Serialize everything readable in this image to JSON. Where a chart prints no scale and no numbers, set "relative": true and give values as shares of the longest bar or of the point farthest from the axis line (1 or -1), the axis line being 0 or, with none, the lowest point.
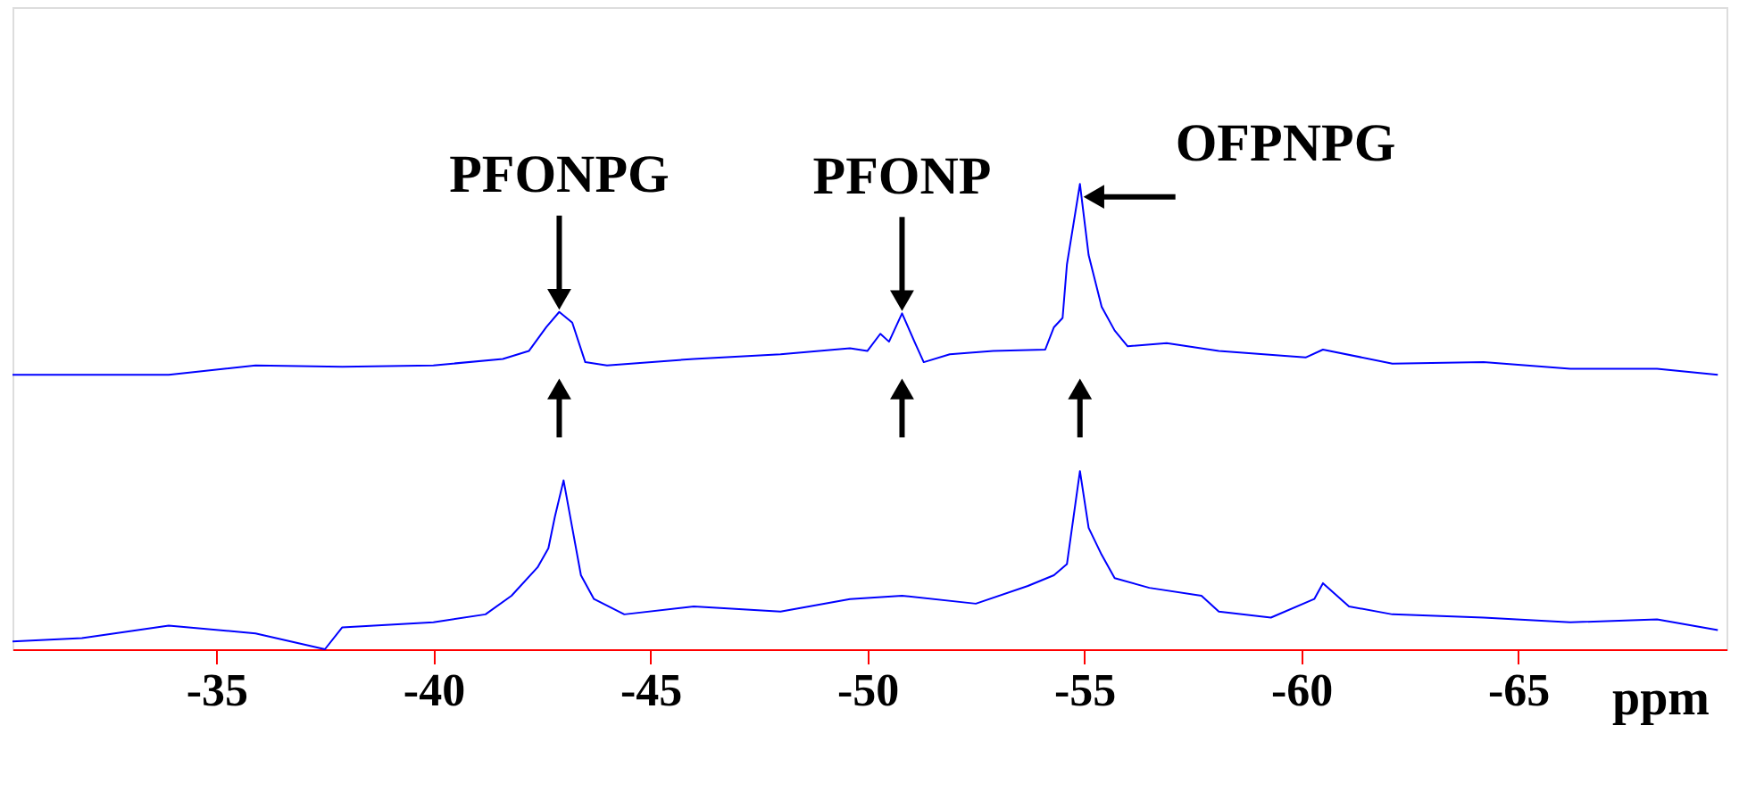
{
  "chart_data": {
    "type": "line",
    "relative": true,
    "xlabel": "ppm",
    "xlim": [
      -30.3,
      -69.8
    ],
    "xticks": [
      -35,
      -40,
      -45,
      -50,
      -55,
      -60,
      -65
    ],
    "grid": false,
    "legend": false,
    "marker": "none",
    "line_style": "solid",
    "annotations": [
      {
        "text": "PFONPG",
        "x": -42.9,
        "y": 0.725
      },
      {
        "text": "PFONP",
        "x": -50.8,
        "y": 0.722
      },
      {
        "text": "OFPNPG",
        "x": -54.9,
        "y": 1.0
      }
    ],
    "series": [
      {
        "color": "#0000ff",
        "x": [
          -30.3,
          -33.9,
          -35.9,
          -37.9,
          -40.0,
          -41.6,
          -42.2,
          -42.6,
          -42.9,
          -43.2,
          -43.5,
          -44.0,
          -46.0,
          -48.0,
          -49.6,
          -50.0,
          -50.3,
          -50.5,
          -50.8,
          -51.1,
          -51.3,
          -51.9,
          -52.9,
          -54.1,
          -54.3,
          -54.5,
          -54.6,
          -54.9,
          -55.1,
          -55.4,
          -55.7,
          -56.0,
          -56.9,
          -58.1,
          -60.1,
          -60.5,
          -62.1,
          -64.2,
          -66.2,
          -68.2,
          -69.6
        ],
        "values": [
          0.59,
          0.59,
          0.61,
          0.607,
          0.61,
          0.624,
          0.641,
          0.692,
          0.725,
          0.702,
          0.617,
          0.61,
          0.624,
          0.634,
          0.647,
          0.641,
          0.678,
          0.661,
          0.722,
          0.658,
          0.617,
          0.634,
          0.641,
          0.644,
          0.692,
          0.712,
          0.827,
          1.0,
          0.847,
          0.736,
          0.685,
          0.651,
          0.658,
          0.641,
          0.627,
          0.644,
          0.614,
          0.617,
          0.603,
          0.603,
          0.59
        ]
      },
      {
        "color": "#0000ff",
        "x": [
          -30.3,
          -31.9,
          -33.9,
          -35.9,
          -37.5,
          -37.9,
          -40.0,
          -41.2,
          -41.8,
          -42.4,
          -42.65,
          -42.8,
          -43.0,
          -43.2,
          -43.4,
          -43.7,
          -44.4,
          -46.0,
          -48.0,
          -49.6,
          -50.8,
          -52.5,
          -53.7,
          -54.3,
          -54.6,
          -54.9,
          -55.1,
          -55.4,
          -55.7,
          -56.5,
          -57.7,
          -58.1,
          -59.3,
          -60.3,
          -60.5,
          -61.1,
          -62.1,
          -64.2,
          -66.2,
          -68.2,
          -69.6
        ],
        "values": [
          0.017,
          0.024,
          0.051,
          0.034,
          0.0,
          0.047,
          0.058,
          0.075,
          0.115,
          0.176,
          0.217,
          0.285,
          0.363,
          0.261,
          0.159,
          0.108,
          0.075,
          0.092,
          0.081,
          0.108,
          0.115,
          0.098,
          0.136,
          0.159,
          0.183,
          0.383,
          0.261,
          0.203,
          0.153,
          0.132,
          0.115,
          0.081,
          0.068,
          0.108,
          0.142,
          0.092,
          0.075,
          0.068,
          0.058,
          0.064,
          0.041
        ]
      }
    ]
  }
}
